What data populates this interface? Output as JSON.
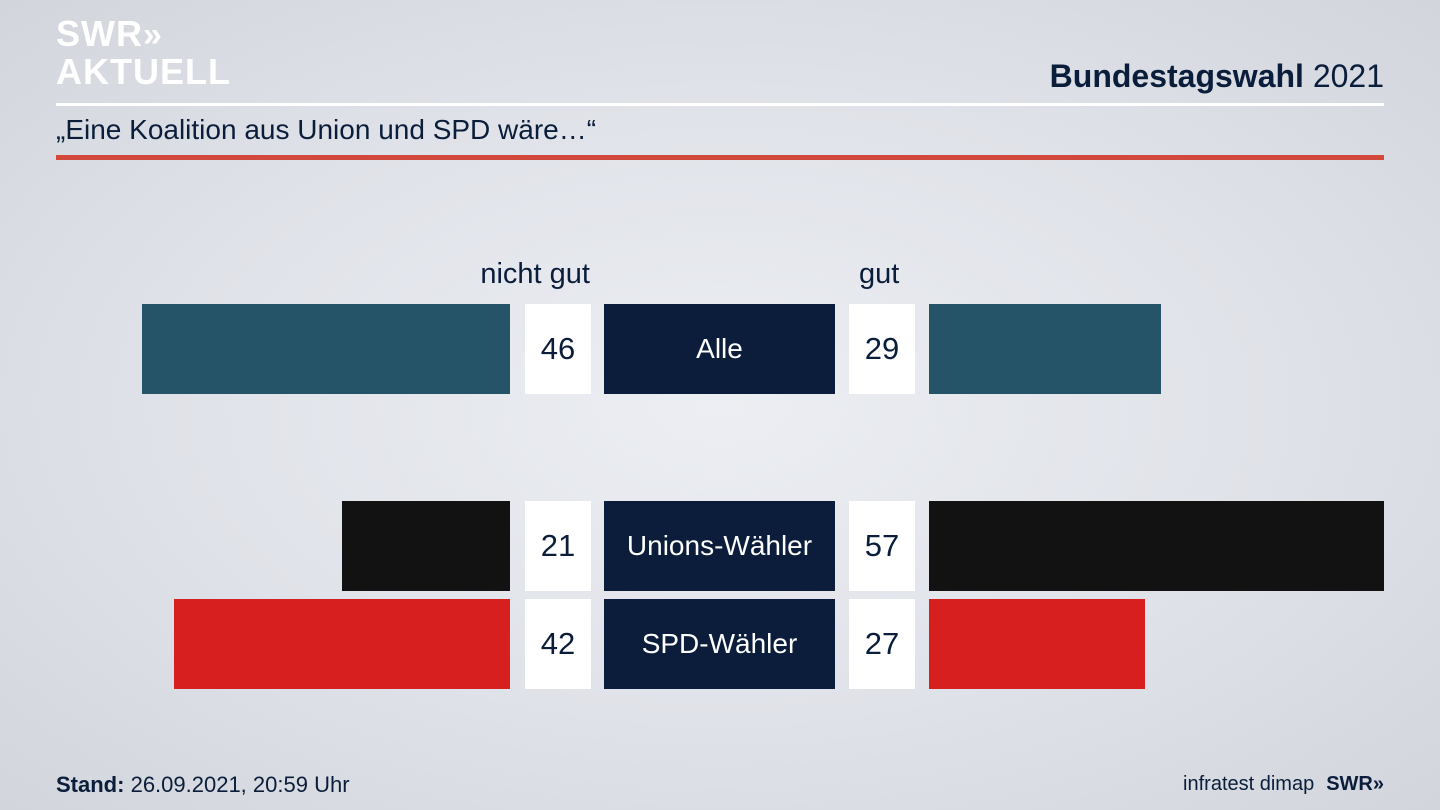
{
  "header": {
    "logo_line1": "SWR",
    "logo_line2": "AKTUELL",
    "title_bold": "Bundestagswahl",
    "title_year": "2021",
    "subtitle": "„Eine Koalition aus Union und SPD wäre…“"
  },
  "chart_data": {
    "type": "bar",
    "orientation": "diverging-horizontal",
    "column_left": "nicht gut",
    "column_right": "gut",
    "rows": [
      {
        "label": "Alle",
        "nicht_gut": 46,
        "gut": 29,
        "color": "#255469"
      },
      {
        "label": "Unions-Wähler",
        "nicht_gut": 21,
        "gut": 57,
        "color": "#121212"
      },
      {
        "label": "SPD-Wähler",
        "nicht_gut": 42,
        "gut": 27,
        "color": "#d71f1f"
      }
    ]
  },
  "footer": {
    "stand_label": "Stand:",
    "stand_value": "26.09.2021, 20:59 Uhr",
    "source": "infratest dimap",
    "source_logo": "SWR"
  },
  "colors": {
    "accent_red_rule": "#d2483a",
    "label_box": "#0b1d3b",
    "text": "#0a1d3a"
  }
}
